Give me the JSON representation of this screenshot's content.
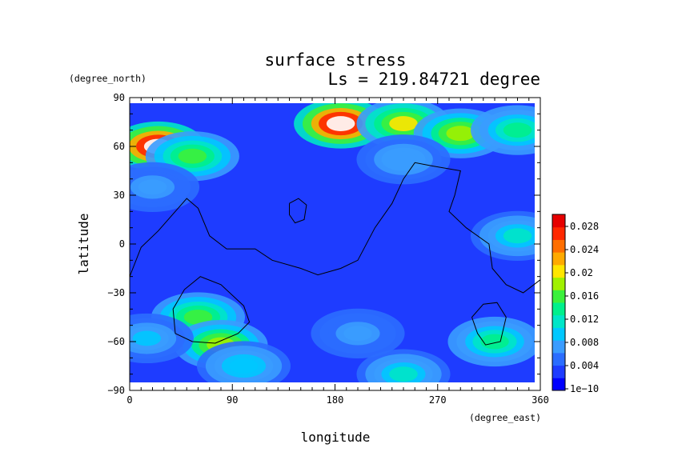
{
  "chart_data": {
    "type": "heatmap",
    "title": "surface stress",
    "subtitle": "Ls = 219.84721 degree",
    "xlabel": "longitude",
    "xunit": "(degree_east)",
    "ylabel": "latitude",
    "yunit": "(degree_north)",
    "xlim": [
      0,
      360
    ],
    "ylim": [
      -90,
      90
    ],
    "xticks": [
      "0",
      "90",
      "180",
      "270",
      "360"
    ],
    "yticks": [
      "90",
      "60",
      "30",
      "0",
      "−30",
      "−60",
      "−90"
    ],
    "colorbar": {
      "ticks": [
        "0.028",
        "0.024",
        "0.02",
        "0.016",
        "0.012",
        "0.008",
        "0.004",
        "1e−10"
      ],
      "range": [
        0,
        0.03
      ],
      "colors": [
        "#0000ff",
        "#1e3cff",
        "#2b6dff",
        "#3a9cff",
        "#00c8ff",
        "#00e6c8",
        "#00f08c",
        "#3cf03c",
        "#a0f000",
        "#ffe600",
        "#ffaa00",
        "#ff6e00",
        "#ff2800",
        "#e60000"
      ]
    },
    "grid": false,
    "background_value": 0.004,
    "hotspots": [
      {
        "lon": 25,
        "lat": 60,
        "value": 0.032
      },
      {
        "lon": 55,
        "lat": 54,
        "value": 0.017
      },
      {
        "lon": 185,
        "lat": 74,
        "value": 0.032
      },
      {
        "lon": 240,
        "lat": 74,
        "value": 0.02
      },
      {
        "lon": 290,
        "lat": 68,
        "value": 0.018
      },
      {
        "lon": 340,
        "lat": 70,
        "value": 0.014
      },
      {
        "lon": 240,
        "lat": 52,
        "value": 0.008
      },
      {
        "lon": 20,
        "lat": 35,
        "value": 0.007
      },
      {
        "lon": 340,
        "lat": 5,
        "value": 0.011
      },
      {
        "lon": 60,
        "lat": -45,
        "value": 0.016
      },
      {
        "lon": 80,
        "lat": -62,
        "value": 0.018
      },
      {
        "lon": 100,
        "lat": -75,
        "value": 0.01
      },
      {
        "lon": 15,
        "lat": -58,
        "value": 0.009
      },
      {
        "lon": 240,
        "lat": -80,
        "value": 0.011
      },
      {
        "lon": 320,
        "lat": -60,
        "value": 0.014
      },
      {
        "lon": 200,
        "lat": -55,
        "value": 0.007
      }
    ],
    "contours": [
      [
        [
          0,
          -20
        ],
        [
          10,
          -2
        ],
        [
          25,
          8
        ],
        [
          40,
          20
        ],
        [
          50,
          28
        ],
        [
          60,
          22
        ],
        [
          70,
          5
        ],
        [
          85,
          -3
        ],
        [
          110,
          -3
        ],
        [
          125,
          -10
        ],
        [
          150,
          -15
        ],
        [
          165,
          -19
        ],
        [
          185,
          -15
        ],
        [
          200,
          -10
        ],
        [
          215,
          10
        ],
        [
          230,
          25
        ],
        [
          240,
          40
        ],
        [
          250,
          50
        ],
        [
          265,
          48
        ],
        [
          290,
          45
        ],
        [
          285,
          30
        ],
        [
          280,
          20
        ],
        [
          295,
          10
        ],
        [
          315,
          0
        ],
        [
          318,
          -15
        ],
        [
          330,
          -25
        ],
        [
          345,
          -30
        ],
        [
          360,
          -22
        ]
      ],
      [
        [
          140,
          25
        ],
        [
          148,
          28
        ],
        [
          155,
          24
        ],
        [
          153,
          15
        ],
        [
          145,
          13
        ],
        [
          140,
          18
        ],
        [
          140,
          25
        ]
      ],
      [
        [
          55,
          -60
        ],
        [
          40,
          -55
        ],
        [
          38,
          -40
        ],
        [
          48,
          -28
        ],
        [
          62,
          -20
        ],
        [
          80,
          -25
        ],
        [
          100,
          -38
        ],
        [
          105,
          -48
        ],
        [
          95,
          -55
        ],
        [
          75,
          -61
        ],
        [
          55,
          -60
        ]
      ],
      [
        [
          305,
          -55
        ],
        [
          300,
          -45
        ],
        [
          310,
          -37
        ],
        [
          322,
          -36
        ],
        [
          330,
          -45
        ],
        [
          325,
          -60
        ],
        [
          312,
          -62
        ],
        [
          305,
          -55
        ]
      ]
    ]
  }
}
